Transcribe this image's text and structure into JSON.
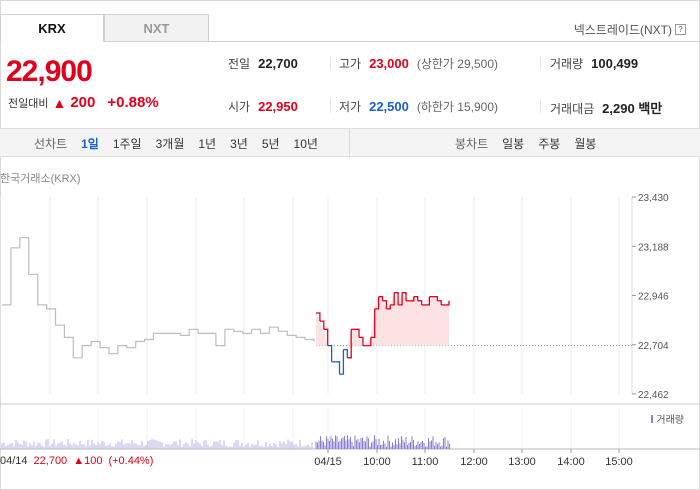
{
  "tabs": [
    {
      "label": "KRX",
      "active": true
    },
    {
      "label": "NXT",
      "active": false
    }
  ],
  "nxt_link": "넥스트레이드(NXT)",
  "price": {
    "current": "22,900",
    "change_label": "전일대비",
    "change_value": "200",
    "change_pct": "+0.88%",
    "up_color": "#e0001b",
    "down_color": "#1560d2"
  },
  "stats": {
    "prev_close": {
      "label": "전일",
      "value": "22,700"
    },
    "open": {
      "label": "시가",
      "value": "22,950"
    },
    "high": {
      "label": "고가",
      "value": "23,000",
      "sub": "(상한가 29,500)"
    },
    "low": {
      "label": "저가",
      "value": "22,500",
      "sub": "(하한가 15,900)"
    },
    "volume": {
      "label": "거래량",
      "value": "100,499"
    },
    "amount": {
      "label": "거래대금",
      "value": "2,290 백만"
    }
  },
  "line_chart": {
    "title": "선차트",
    "periods": [
      "1일",
      "1주일",
      "3개월",
      "1년",
      "3년",
      "5년",
      "10년"
    ],
    "selected": "1일"
  },
  "candle_chart": {
    "title": "봉차트",
    "periods": [
      "일봉",
      "주봉",
      "월봉"
    ]
  },
  "exchange_label": "한국거래소(KRX)",
  "volume_legend": "거래량",
  "footer": {
    "date": "04/14",
    "close": "22,700",
    "change": "100",
    "pct": "(+0.44%)"
  },
  "chart_data": {
    "type": "line",
    "y_ticks": [
      "23,430",
      "23,188",
      "22,946",
      "22,704",
      "22,462"
    ],
    "ylim": [
      22462,
      23430
    ],
    "x_tick_labels": [
      "04/15",
      "10:00",
      "11:00",
      "12:00",
      "13:00",
      "14:00",
      "15:00"
    ],
    "reference_price": 22700,
    "series": [
      {
        "values": [
          22900,
          23180,
          23230,
          23050,
          22900,
          22880,
          22800,
          22740,
          22640,
          22700,
          22720,
          22690,
          22660,
          22700,
          22690,
          22720,
          22730,
          22760,
          22760,
          22760,
          22750,
          22780,
          22760,
          22760,
          22700,
          22780,
          22770,
          22760,
          22780,
          22760,
          22790,
          22770,
          22750,
          22740,
          22730,
          22720
        ]
      },
      {
        "values": [
          22860,
          22820,
          22780,
          22700,
          22620,
          22620,
          22560,
          22680,
          22640,
          22780,
          22780,
          22740,
          22700,
          22700,
          22740,
          22880,
          22940,
          22920,
          22880,
          22900,
          22960,
          22900,
          22960,
          22920,
          22920,
          22940,
          22920,
          22900,
          22900,
          22940,
          22940,
          22920,
          22900,
          22900,
          22920
        ]
      }
    ]
  }
}
